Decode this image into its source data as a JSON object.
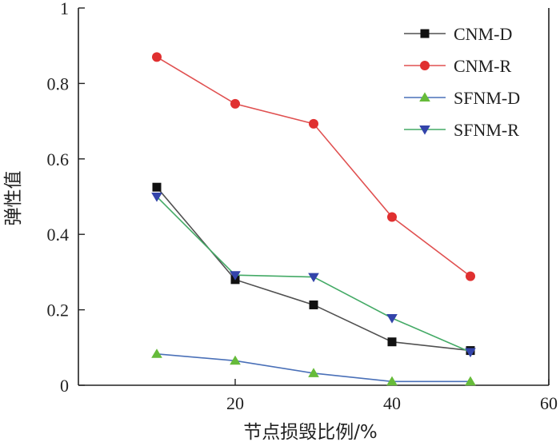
{
  "chart_data": {
    "type": "line",
    "title": "",
    "xlabel": "节点损毁比例/%",
    "ylabel": "弹性值",
    "xlim": [
      0,
      60
    ],
    "ylim": [
      0,
      1
    ],
    "x_ticks": [
      "20",
      "40",
      "60"
    ],
    "y_ticks": [
      "0",
      "0.2",
      "0.4",
      "0.6",
      "0.8",
      "1"
    ],
    "legend_position": "top-right",
    "x": [
      10,
      20,
      30,
      40,
      50
    ],
    "series": [
      {
        "name": "CNM-D",
        "values": [
          0.525,
          0.28,
          0.213,
          0.115,
          0.092
        ],
        "line_color": "#505050",
        "marker_color": "#111111",
        "marker": "square"
      },
      {
        "name": "CNM-R",
        "values": [
          0.87,
          0.746,
          0.693,
          0.446,
          0.289
        ],
        "line_color": "#e05050",
        "marker_color": "#e03030",
        "marker": "circle"
      },
      {
        "name": "SFNM-D",
        "values": [
          0.083,
          0.065,
          0.032,
          0.01,
          0.01
        ],
        "line_color": "#4a70b8",
        "marker_color": "#66bb3a",
        "marker": "triangle-up"
      },
      {
        "name": "SFNM-R",
        "values": [
          0.5,
          0.292,
          0.287,
          0.178,
          0.088
        ],
        "line_color": "#44aa66",
        "marker_color": "#3344aa",
        "marker": "triangle-down"
      }
    ]
  }
}
